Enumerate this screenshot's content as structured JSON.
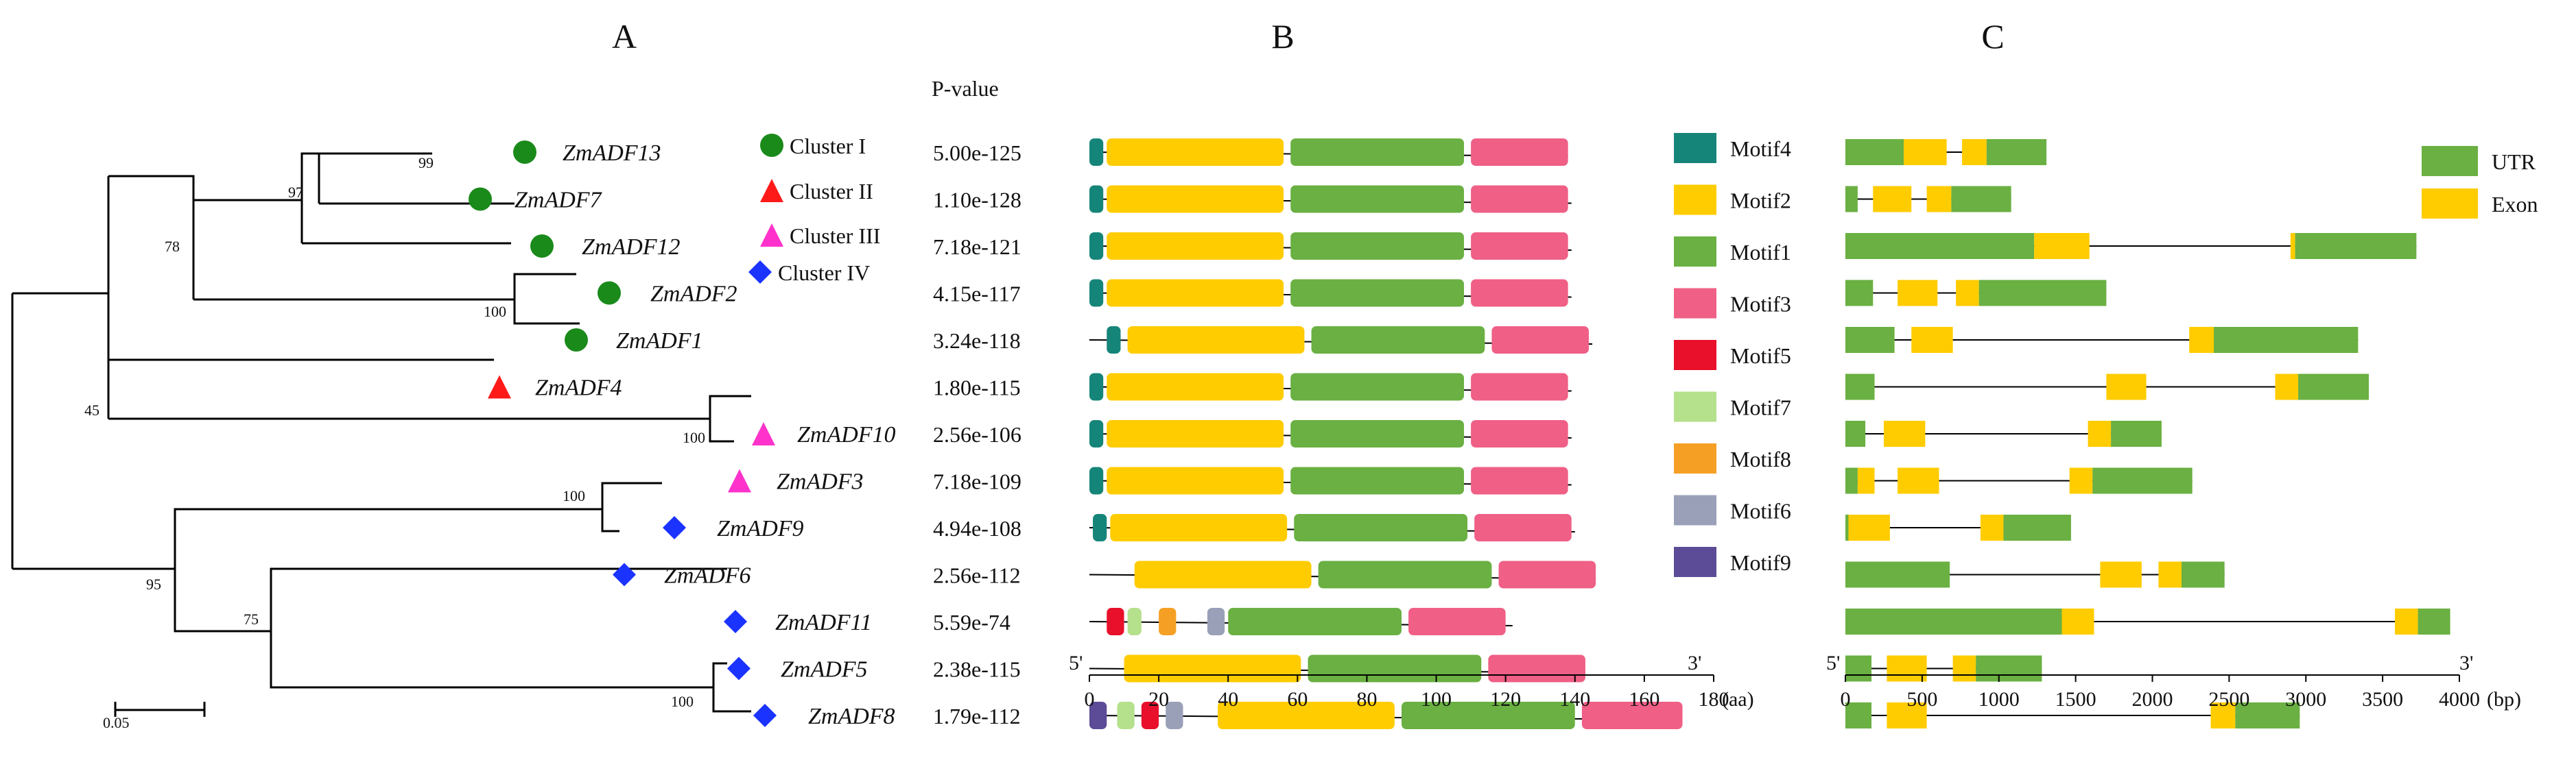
{
  "panels": {
    "a": "A",
    "b": "B",
    "c": "C"
  },
  "pvalue_header": "P-value",
  "scale_bar_label": "0.05",
  "colors": {
    "cluster1": "#1a8a1a",
    "cluster2": "#ff1a1a",
    "cluster3": "#ff33cc",
    "cluster4": "#1a33ff",
    "motif1": "#6ab042",
    "motif2": "#ffcc00",
    "motif3": "#ef5f86",
    "motif4": "#168579",
    "motif5": "#e8102a",
    "motif6": "#9aa0b8",
    "motif7": "#b5e08c",
    "motif8": "#f5a025",
    "motif9": "#5c4b96",
    "utr": "#6ab042",
    "exon": "#ffcc00"
  },
  "cluster_legend": [
    "Cluster I",
    "Cluster II",
    "Cluster III",
    "Cluster IV"
  ],
  "bootstrap": [
    "99",
    "97",
    "78",
    "100",
    "45",
    "100",
    "100",
    "95",
    "75",
    "100"
  ],
  "genes": [
    {
      "name": "ZmADF13",
      "cluster": 1,
      "pvalue": "5.00e-125"
    },
    {
      "name": "ZmADF7",
      "cluster": 1,
      "pvalue": "1.10e-128"
    },
    {
      "name": "ZmADF12",
      "cluster": 1,
      "pvalue": "7.18e-121"
    },
    {
      "name": "ZmADF2",
      "cluster": 1,
      "pvalue": "4.15e-117"
    },
    {
      "name": "ZmADF1",
      "cluster": 1,
      "pvalue": "3.24e-118"
    },
    {
      "name": "ZmADF4",
      "cluster": 2,
      "pvalue": "1.80e-115"
    },
    {
      "name": "ZmADF10",
      "cluster": 3,
      "pvalue": "2.56e-106"
    },
    {
      "name": "ZmADF3",
      "cluster": 3,
      "pvalue": "7.18e-109"
    },
    {
      "name": "ZmADF9",
      "cluster": 4,
      "pvalue": "4.94e-108"
    },
    {
      "name": "ZmADF6",
      "cluster": 4,
      "pvalue": "2.56e-112"
    },
    {
      "name": "ZmADF11",
      "cluster": 4,
      "pvalue": "5.59e-74"
    },
    {
      "name": "ZmADF5",
      "cluster": 4,
      "pvalue": "2.38e-115"
    },
    {
      "name": "ZmADF8",
      "cluster": 4,
      "pvalue": "1.79e-112"
    }
  ],
  "motif_legend": [
    {
      "name": "Motif4",
      "key": "motif4"
    },
    {
      "name": "Motif2",
      "key": "motif2"
    },
    {
      "name": "Motif1",
      "key": "motif1"
    },
    {
      "name": "Motif3",
      "key": "motif3"
    },
    {
      "name": "Motif5",
      "key": "motif5"
    },
    {
      "name": "Motif7",
      "key": "motif7"
    },
    {
      "name": "Motif8",
      "key": "motif8"
    },
    {
      "name": "Motif6",
      "key": "motif6"
    },
    {
      "name": "Motif9",
      "key": "motif9"
    }
  ],
  "motif_axis": {
    "ticks": [
      "0",
      "20",
      "40",
      "60",
      "80",
      "100",
      "120",
      "140",
      "160",
      "180"
    ],
    "max": 180,
    "unit": "(aa)",
    "left": "5'",
    "right": "3'"
  },
  "motifs": [
    {
      "length": 138,
      "motifs": [
        {
          "m": "motif4",
          "s": 0,
          "e": 4
        },
        {
          "m": "motif2",
          "s": 5,
          "e": 56
        },
        {
          "m": "motif1",
          "s": 58,
          "e": 108
        },
        {
          "m": "motif3",
          "s": 110,
          "e": 138
        }
      ]
    },
    {
      "length": 139,
      "motifs": [
        {
          "m": "motif4",
          "s": 0,
          "e": 4
        },
        {
          "m": "motif2",
          "s": 5,
          "e": 56
        },
        {
          "m": "motif1",
          "s": 58,
          "e": 108
        },
        {
          "m": "motif3",
          "s": 110,
          "e": 138
        }
      ]
    },
    {
      "length": 139,
      "motifs": [
        {
          "m": "motif4",
          "s": 0,
          "e": 4
        },
        {
          "m": "motif2",
          "s": 5,
          "e": 56
        },
        {
          "m": "motif1",
          "s": 58,
          "e": 108
        },
        {
          "m": "motif3",
          "s": 110,
          "e": 138
        }
      ]
    },
    {
      "length": 139,
      "motifs": [
        {
          "m": "motif4",
          "s": 0,
          "e": 4
        },
        {
          "m": "motif2",
          "s": 5,
          "e": 56
        },
        {
          "m": "motif1",
          "s": 58,
          "e": 108
        },
        {
          "m": "motif3",
          "s": 110,
          "e": 138
        }
      ]
    },
    {
      "length": 145,
      "motifs": [
        {
          "m": "motif4",
          "s": 5,
          "e": 9
        },
        {
          "m": "motif2",
          "s": 11,
          "e": 62
        },
        {
          "m": "motif1",
          "s": 64,
          "e": 114
        },
        {
          "m": "motif3",
          "s": 116,
          "e": 144
        }
      ]
    },
    {
      "length": 139,
      "motifs": [
        {
          "m": "motif4",
          "s": 0,
          "e": 4
        },
        {
          "m": "motif2",
          "s": 5,
          "e": 56
        },
        {
          "m": "motif1",
          "s": 58,
          "e": 108
        },
        {
          "m": "motif3",
          "s": 110,
          "e": 138
        }
      ]
    },
    {
      "length": 139,
      "motifs": [
        {
          "m": "motif4",
          "s": 0,
          "e": 4
        },
        {
          "m": "motif2",
          "s": 5,
          "e": 56
        },
        {
          "m": "motif1",
          "s": 58,
          "e": 108
        },
        {
          "m": "motif3",
          "s": 110,
          "e": 138
        }
      ]
    },
    {
      "length": 139,
      "motifs": [
        {
          "m": "motif4",
          "s": 0,
          "e": 4
        },
        {
          "m": "motif2",
          "s": 5,
          "e": 56
        },
        {
          "m": "motif1",
          "s": 58,
          "e": 108
        },
        {
          "m": "motif3",
          "s": 110,
          "e": 138
        }
      ]
    },
    {
      "length": 140,
      "motifs": [
        {
          "m": "motif4",
          "s": 1,
          "e": 5
        },
        {
          "m": "motif2",
          "s": 6,
          "e": 57
        },
        {
          "m": "motif1",
          "s": 59,
          "e": 109
        },
        {
          "m": "motif3",
          "s": 111,
          "e": 139
        }
      ]
    },
    {
      "length": 146,
      "motifs": [
        {
          "m": "motif2",
          "s": 13,
          "e": 64
        },
        {
          "m": "motif1",
          "s": 66,
          "e": 116
        },
        {
          "m": "motif3",
          "s": 118,
          "e": 146
        }
      ]
    },
    {
      "length": 122,
      "motifs": [
        {
          "m": "motif5",
          "s": 5,
          "e": 10
        },
        {
          "m": "motif7",
          "s": 11,
          "e": 15
        },
        {
          "m": "motif8",
          "s": 20,
          "e": 25
        },
        {
          "m": "motif6",
          "s": 34,
          "e": 39
        },
        {
          "m": "motif1",
          "s": 40,
          "e": 90
        },
        {
          "m": "motif3",
          "s": 92,
          "e": 120
        }
      ]
    },
    {
      "length": 143,
      "motifs": [
        {
          "m": "motif2",
          "s": 10,
          "e": 61
        },
        {
          "m": "motif1",
          "s": 63,
          "e": 113
        },
        {
          "m": "motif3",
          "s": 115,
          "e": 143
        }
      ]
    },
    {
      "length": 171,
      "motifs": [
        {
          "m": "motif9",
          "s": 0,
          "e": 5
        },
        {
          "m": "motif7",
          "s": 8,
          "e": 13
        },
        {
          "m": "motif5",
          "s": 15,
          "e": 20
        },
        {
          "m": "motif6",
          "s": 22,
          "e": 27
        },
        {
          "m": "motif2",
          "s": 37,
          "e": 88
        },
        {
          "m": "motif1",
          "s": 90,
          "e": 140
        },
        {
          "m": "motif3",
          "s": 142,
          "e": 171
        }
      ]
    }
  ],
  "gene_legend": [
    {
      "name": "UTR",
      "key": "utr"
    },
    {
      "name": "Exon",
      "key": "exon"
    }
  ],
  "gene_axis": {
    "ticks": [
      "0",
      "500",
      "1000",
      "1500",
      "2000",
      "2500",
      "3000",
      "3500",
      "4000"
    ],
    "max": 4000,
    "unit": "(bp)",
    "left": "5'",
    "right": "3'"
  },
  "structures": [
    {
      "length": 1310,
      "segs": [
        {
          "t": "utr",
          "s": 0,
          "e": 380
        },
        {
          "t": "exon",
          "s": 380,
          "e": 660
        },
        {
          "t": "exon",
          "s": 760,
          "e": 920
        },
        {
          "t": "utr",
          "s": 920,
          "e": 1310
        }
      ]
    },
    {
      "length": 1080,
      "segs": [
        {
          "t": "utr",
          "s": 0,
          "e": 80
        },
        {
          "t": "exon",
          "s": 180,
          "e": 430
        },
        {
          "t": "exon",
          "s": 530,
          "e": 690
        },
        {
          "t": "utr",
          "s": 690,
          "e": 1080
        }
      ]
    },
    {
      "length": 3720,
      "segs": [
        {
          "t": "utr",
          "s": 0,
          "e": 1230
        },
        {
          "t": "exon",
          "s": 1230,
          "e": 1590
        },
        {
          "t": "exon",
          "s": 2900,
          "e": 2930
        },
        {
          "t": "utr",
          "s": 2930,
          "e": 3720
        }
      ]
    },
    {
      "length": 1700,
      "segs": [
        {
          "t": "utr",
          "s": 0,
          "e": 180
        },
        {
          "t": "exon",
          "s": 340,
          "e": 600
        },
        {
          "t": "exon",
          "s": 720,
          "e": 870
        },
        {
          "t": "utr",
          "s": 870,
          "e": 1700
        }
      ]
    },
    {
      "length": 3340,
      "segs": [
        {
          "t": "utr",
          "s": 0,
          "e": 320
        },
        {
          "t": "exon",
          "s": 430,
          "e": 700
        },
        {
          "t": "exon",
          "s": 2240,
          "e": 2400
        },
        {
          "t": "utr",
          "s": 2400,
          "e": 3340
        }
      ]
    },
    {
      "length": 3410,
      "segs": [
        {
          "t": "utr",
          "s": 0,
          "e": 190
        },
        {
          "t": "exon",
          "s": 1700,
          "e": 1960
        },
        {
          "t": "exon",
          "s": 2800,
          "e": 2950
        },
        {
          "t": "utr",
          "s": 2950,
          "e": 3410
        }
      ]
    },
    {
      "length": 2060,
      "segs": [
        {
          "t": "utr",
          "s": 0,
          "e": 130
        },
        {
          "t": "exon",
          "s": 250,
          "e": 520
        },
        {
          "t": "exon",
          "s": 1580,
          "e": 1730
        },
        {
          "t": "utr",
          "s": 1730,
          "e": 2060
        }
      ]
    },
    {
      "length": 2260,
      "segs": [
        {
          "t": "utr",
          "s": 0,
          "e": 80
        },
        {
          "t": "exon",
          "s": 80,
          "e": 190
        },
        {
          "t": "exon",
          "s": 340,
          "e": 610
        },
        {
          "t": "exon",
          "s": 1460,
          "e": 1610
        },
        {
          "t": "utr",
          "s": 1610,
          "e": 2260
        }
      ]
    },
    {
      "length": 1470,
      "segs": [
        {
          "t": "utr",
          "s": 0,
          "e": 20
        },
        {
          "t": "exon",
          "s": 20,
          "e": 290
        },
        {
          "t": "exon",
          "s": 880,
          "e": 1030
        },
        {
          "t": "utr",
          "s": 1030,
          "e": 1470
        }
      ]
    },
    {
      "length": 2470,
      "segs": [
        {
          "t": "utr",
          "s": 0,
          "e": 680
        },
        {
          "t": "exon",
          "s": 1660,
          "e": 1930
        },
        {
          "t": "exon",
          "s": 2040,
          "e": 2190
        },
        {
          "t": "utr",
          "s": 2190,
          "e": 2470
        }
      ]
    },
    {
      "length": 3940,
      "segs": [
        {
          "t": "utr",
          "s": 0,
          "e": 1410
        },
        {
          "t": "exon",
          "s": 1410,
          "e": 1620
        },
        {
          "t": "exon",
          "s": 3580,
          "e": 3730
        },
        {
          "t": "utr",
          "s": 3730,
          "e": 3940
        }
      ]
    },
    {
      "length": 1280,
      "segs": [
        {
          "t": "utr",
          "s": 0,
          "e": 170
        },
        {
          "t": "exon",
          "s": 270,
          "e": 530
        },
        {
          "t": "exon",
          "s": 700,
          "e": 850
        },
        {
          "t": "utr",
          "s": 850,
          "e": 1280
        }
      ]
    },
    {
      "length": 2960,
      "segs": [
        {
          "t": "utr",
          "s": 0,
          "e": 170
        },
        {
          "t": "exon",
          "s": 270,
          "e": 530
        },
        {
          "t": "exon",
          "s": 2380,
          "e": 2540
        },
        {
          "t": "utr",
          "s": 2540,
          "e": 2960
        }
      ]
    }
  ]
}
